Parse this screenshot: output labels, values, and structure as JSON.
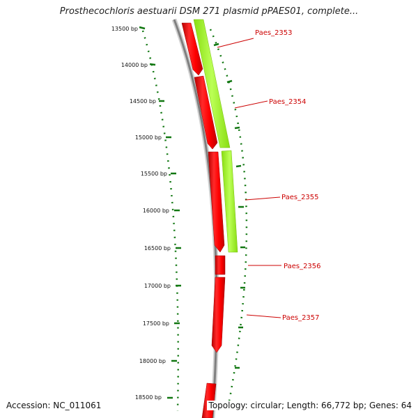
{
  "title": "Prosthecochloris aestuarii DSM 271 plasmid pPAES01, complete...",
  "footer": {
    "accession": "Accession: NC_011061",
    "summary": "Topology: circular; Length: 66,772 bp; Genes: 64"
  },
  "colors": {
    "cds": "#ff0000",
    "gene": "#99ee22",
    "backbone": "#888888",
    "ticks": "#117711",
    "label": "#cc0000"
  },
  "ticks": [
    "13500 bp",
    "14000 bp",
    "14500 bp",
    "15000 bp",
    "15500 bp",
    "16000 bp",
    "16500 bp",
    "17000 bp",
    "17500 bp",
    "18000 bp",
    "18500 bp"
  ],
  "gene_labels": [
    "Paes_2353",
    "Paes_2354",
    "Paes_2355",
    "Paes_2356",
    "Paes_2357"
  ]
}
